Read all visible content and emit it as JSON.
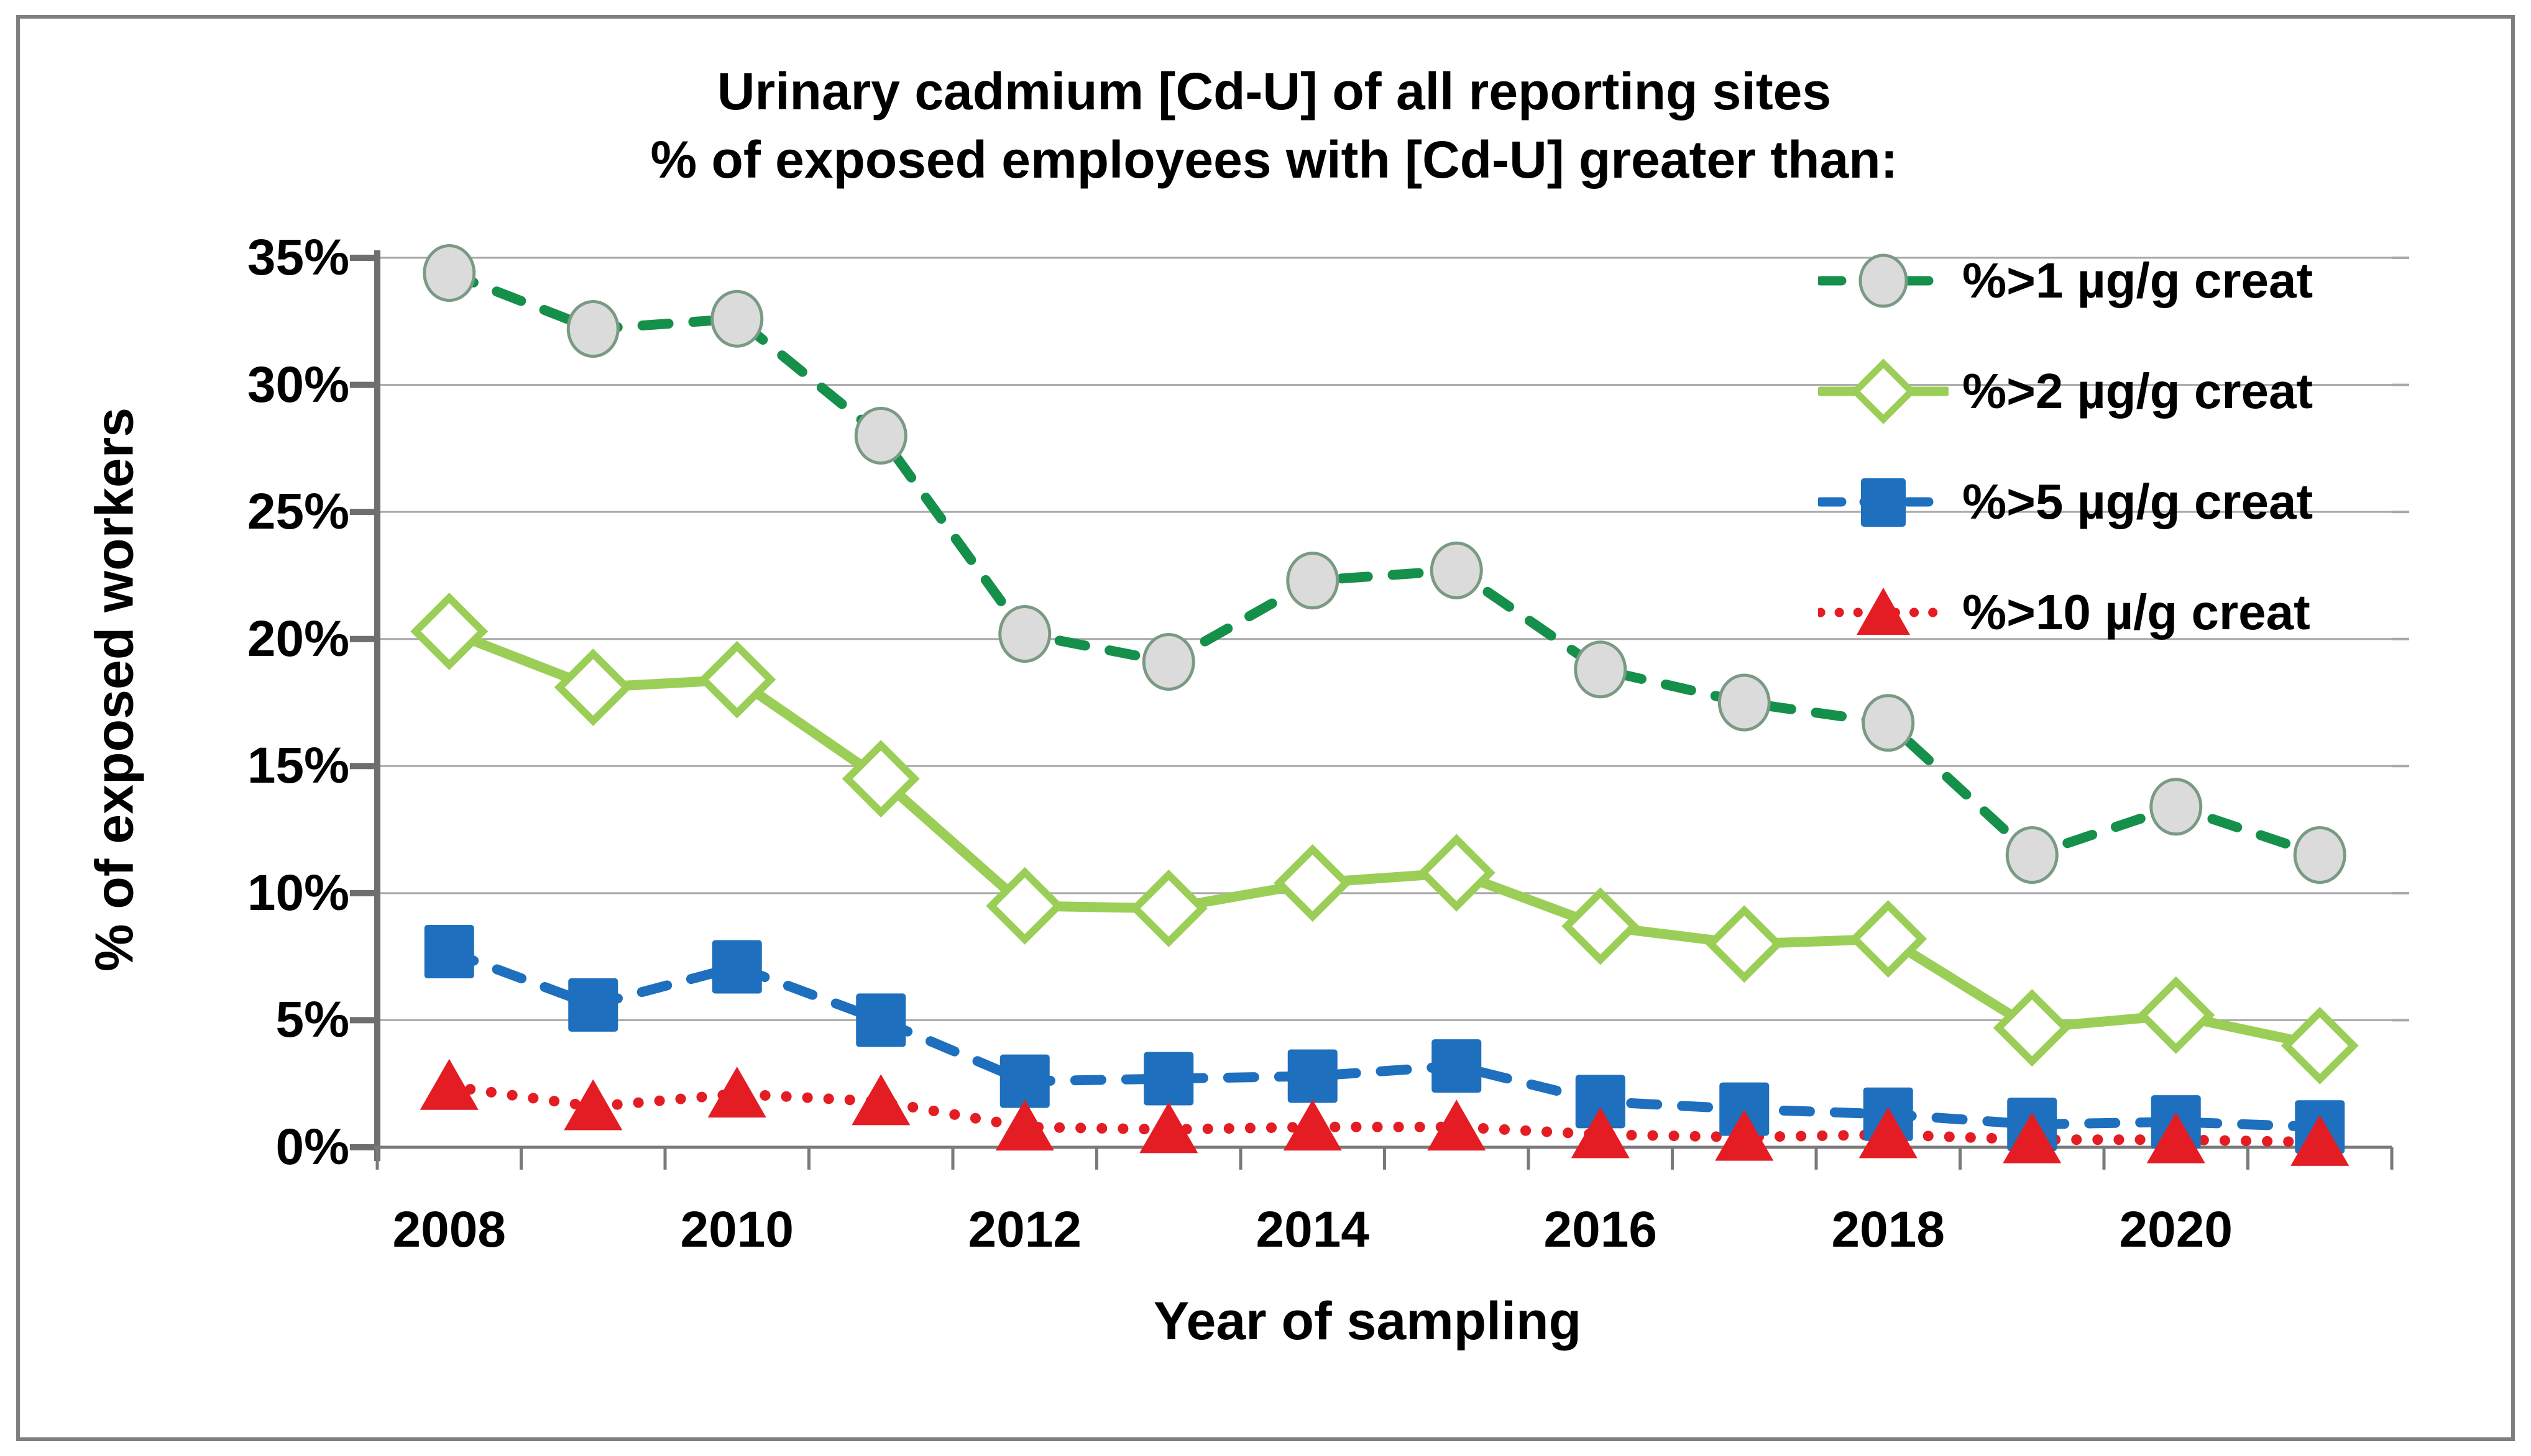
{
  "title": {
    "line1": "Urinary cadmium [Cd-U] of all reporting sites",
    "line2": "% of exposed employees with [Cd-U] greater than:"
  },
  "y_axis": {
    "label": "% of exposed workers",
    "tick_labels": [
      "0%",
      "5%",
      "10%",
      "15%",
      "20%",
      "25%",
      "30%",
      "35%"
    ],
    "tick_values": [
      0,
      5,
      10,
      15,
      20,
      25,
      30,
      35
    ]
  },
  "x_axis": {
    "label": "Year of sampling",
    "tick_labels": [
      "2008",
      "2010",
      "2012",
      "2014",
      "2016",
      "2018",
      "2020"
    ],
    "tick_years": [
      2008,
      2010,
      2012,
      2014,
      2016,
      2018,
      2020
    ]
  },
  "legend": {
    "items": [
      {
        "label": "%>1 µg/g creat"
      },
      {
        "label": "%>2 µg/g creat"
      },
      {
        "label": "%>5 µg/g creat"
      },
      {
        "label": "%>10 µ/g creat"
      }
    ]
  },
  "colors": {
    "dark_green": "#14904a",
    "light_green": "#9bce57",
    "blue": "#1e6fbe",
    "red": "#e31d23",
    "circle_fill": "#dbdbdb",
    "circle_stroke": "#7a9a84",
    "gridline": "#a8a8a8",
    "y_axis_line": "#6e6e6e",
    "x_axis_line": "#7a7a7a",
    "frame_border": "#7f7f7f"
  },
  "chart_data": {
    "type": "line",
    "title": "Urinary cadmium [Cd-U] of all reporting sites — % of exposed employees with [Cd-U] greater than:",
    "xlabel": "Year of sampling",
    "ylabel": "% of exposed workers",
    "ylim": [
      0,
      35
    ],
    "y_tick_step": 5,
    "grid": true,
    "legend_position": "inside-top-right",
    "x": [
      2008,
      2009,
      2010,
      2011,
      2012,
      2013,
      2014,
      2015,
      2016,
      2017,
      2018,
      2019,
      2020,
      2021
    ],
    "series": [
      {
        "name": "%>1 µg/g creat",
        "color": "#14904a",
        "line_style": "dashed",
        "marker": "circle",
        "values": [
          34.4,
          32.2,
          32.6,
          28.0,
          20.2,
          19.1,
          22.3,
          22.7,
          18.8,
          17.5,
          16.7,
          11.5,
          13.4,
          11.5
        ]
      },
      {
        "name": "%>2 µg/g creat",
        "color": "#9bce57",
        "line_style": "solid",
        "marker": "diamond",
        "values": [
          20.3,
          18.1,
          18.4,
          14.5,
          9.5,
          9.4,
          10.4,
          10.8,
          8.7,
          8.0,
          8.2,
          4.7,
          5.2,
          4.0
        ]
      },
      {
        "name": "%>5 µg/g creat",
        "color": "#1e6fbe",
        "line_style": "dashed",
        "marker": "square",
        "values": [
          7.7,
          5.6,
          7.1,
          5.0,
          2.6,
          2.7,
          2.8,
          3.2,
          1.8,
          1.5,
          1.3,
          0.9,
          1.0,
          0.8
        ]
      },
      {
        "name": "%>10 µ/g creat",
        "color": "#e31d23",
        "line_style": "dotted",
        "marker": "triangle",
        "values": [
          2.4,
          1.6,
          2.1,
          1.8,
          0.8,
          0.7,
          0.8,
          0.8,
          0.5,
          0.4,
          0.5,
          0.3,
          0.3,
          0.2
        ]
      }
    ]
  }
}
